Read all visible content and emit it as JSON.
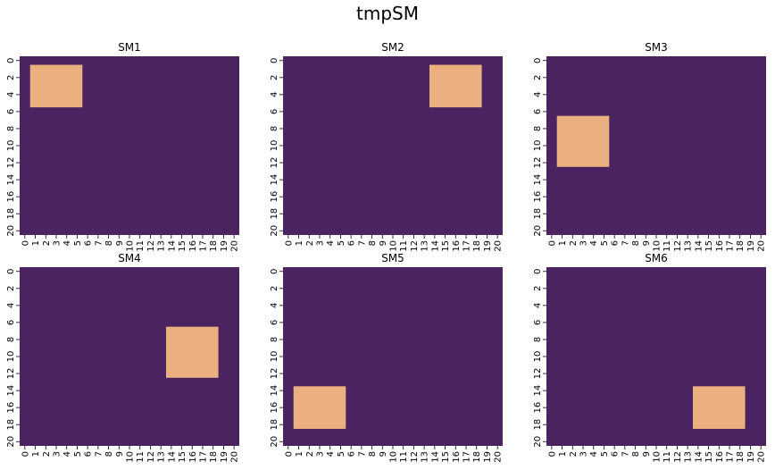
{
  "figure": {
    "title": "tmpSM",
    "colors": {
      "background_cell": "#4a2360",
      "active_cell": "#ebb080",
      "text": "#000000"
    }
  },
  "chart_data": [
    {
      "type": "heatmap",
      "title": "SM1",
      "rows": 21,
      "cols": 21,
      "value_range": [
        0,
        1
      ],
      "background_value": 0,
      "active_value": 1,
      "active_block": {
        "row_start": 1,
        "row_end": 5,
        "col_start": 1,
        "col_end": 5
      },
      "x_ticks": [
        "0",
        "1",
        "2",
        "3",
        "4",
        "5",
        "6",
        "7",
        "8",
        "9",
        "10",
        "11",
        "12",
        "13",
        "14",
        "15",
        "16",
        "17",
        "18",
        "19",
        "20"
      ],
      "y_ticks": [
        "0",
        "2",
        "4",
        "6",
        "8",
        "10",
        "12",
        "14",
        "16",
        "18",
        "20"
      ]
    },
    {
      "type": "heatmap",
      "title": "SM2",
      "rows": 21,
      "cols": 21,
      "value_range": [
        0,
        1
      ],
      "background_value": 0,
      "active_value": 1,
      "active_block": {
        "row_start": 1,
        "row_end": 5,
        "col_start": 14,
        "col_end": 18
      },
      "x_ticks": [
        "0",
        "1",
        "2",
        "3",
        "4",
        "5",
        "6",
        "7",
        "8",
        "9",
        "10",
        "11",
        "12",
        "13",
        "14",
        "15",
        "16",
        "17",
        "18",
        "19",
        "20"
      ],
      "y_ticks": [
        "0",
        "2",
        "4",
        "6",
        "8",
        "10",
        "12",
        "14",
        "16",
        "18",
        "20"
      ]
    },
    {
      "type": "heatmap",
      "title": "SM3",
      "rows": 21,
      "cols": 21,
      "value_range": [
        0,
        1
      ],
      "background_value": 0,
      "active_value": 1,
      "active_block": {
        "row_start": 7,
        "row_end": 12,
        "col_start": 1,
        "col_end": 5
      },
      "x_ticks": [
        "0",
        "1",
        "2",
        "3",
        "4",
        "5",
        "6",
        "7",
        "8",
        "9",
        "10",
        "11",
        "12",
        "13",
        "14",
        "15",
        "16",
        "17",
        "18",
        "19",
        "20"
      ],
      "y_ticks": [
        "0",
        "2",
        "4",
        "6",
        "8",
        "10",
        "12",
        "14",
        "16",
        "18",
        "20"
      ]
    },
    {
      "type": "heatmap",
      "title": "SM4",
      "rows": 21,
      "cols": 21,
      "value_range": [
        0,
        1
      ],
      "background_value": 0,
      "active_value": 1,
      "active_block": {
        "row_start": 7,
        "row_end": 12,
        "col_start": 14,
        "col_end": 18
      },
      "x_ticks": [
        "0",
        "1",
        "2",
        "3",
        "4",
        "5",
        "6",
        "7",
        "8",
        "9",
        "10",
        "11",
        "12",
        "13",
        "14",
        "15",
        "16",
        "17",
        "18",
        "19",
        "20"
      ],
      "y_ticks": [
        "0",
        "2",
        "4",
        "6",
        "8",
        "10",
        "12",
        "14",
        "16",
        "18",
        "20"
      ]
    },
    {
      "type": "heatmap",
      "title": "SM5",
      "rows": 21,
      "cols": 21,
      "value_range": [
        0,
        1
      ],
      "background_value": 0,
      "active_value": 1,
      "active_block": {
        "row_start": 14,
        "row_end": 18,
        "col_start": 1,
        "col_end": 5
      },
      "x_ticks": [
        "0",
        "1",
        "2",
        "3",
        "4",
        "5",
        "6",
        "7",
        "8",
        "9",
        "10",
        "11",
        "12",
        "13",
        "14",
        "15",
        "16",
        "17",
        "18",
        "19",
        "20"
      ],
      "y_ticks": [
        "0",
        "2",
        "4",
        "6",
        "8",
        "10",
        "12",
        "14",
        "16",
        "18",
        "20"
      ]
    },
    {
      "type": "heatmap",
      "title": "SM6",
      "rows": 21,
      "cols": 21,
      "value_range": [
        0,
        1
      ],
      "background_value": 0,
      "active_value": 1,
      "active_block": {
        "row_start": 14,
        "row_end": 18,
        "col_start": 14,
        "col_end": 18
      },
      "x_ticks": [
        "0",
        "1",
        "2",
        "3",
        "4",
        "5",
        "6",
        "7",
        "8",
        "9",
        "10",
        "11",
        "12",
        "13",
        "14",
        "15",
        "16",
        "17",
        "18",
        "19",
        "20"
      ],
      "y_ticks": [
        "0",
        "2",
        "4",
        "6",
        "8",
        "10",
        "12",
        "14",
        "16",
        "18",
        "20"
      ]
    }
  ]
}
